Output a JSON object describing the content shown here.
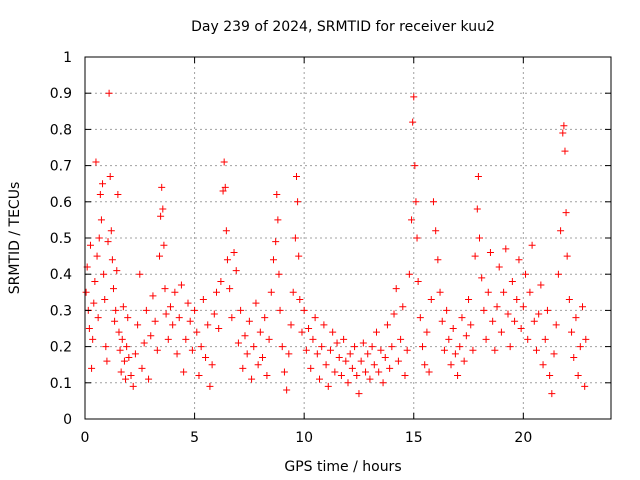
{
  "chart_data": {
    "type": "scatter",
    "title": "Day 239 of 2024, SRMTID for receiver kuu2",
    "xlabel": "GPS time / hours",
    "ylabel": "SRMTID / TECUs",
    "xlim": [
      0,
      24
    ],
    "ylim": [
      0,
      1
    ],
    "xticks": [
      0,
      5,
      10,
      15,
      20
    ],
    "xtick_labels": [
      "0",
      "5",
      "10",
      "15",
      "20"
    ],
    "yticks": [
      0,
      0.1,
      0.2,
      0.3,
      0.4,
      0.5,
      0.6,
      0.7,
      0.8,
      0.9,
      1
    ],
    "ytick_labels": [
      "0",
      "0.1",
      "0.2",
      "0.3",
      "0.4",
      "0.5",
      "0.6",
      "0.7",
      "0.8",
      "0.9",
      "1"
    ],
    "grid": true,
    "marker": "+",
    "color": "#ff0000",
    "series": [
      {
        "name": "SRMTID",
        "points": [
          [
            0.05,
            0.35
          ],
          [
            0.1,
            0.42
          ],
          [
            0.15,
            0.3
          ],
          [
            0.2,
            0.25
          ],
          [
            0.25,
            0.48
          ],
          [
            0.3,
            0.14
          ],
          [
            0.35,
            0.22
          ],
          [
            0.4,
            0.32
          ],
          [
            0.45,
            0.38
          ],
          [
            0.5,
            0.71
          ],
          [
            0.55,
            0.45
          ],
          [
            0.6,
            0.28
          ],
          [
            0.65,
            0.5
          ],
          [
            0.7,
            0.62
          ],
          [
            0.75,
            0.55
          ],
          [
            0.8,
            0.65
          ],
          [
            0.85,
            0.4
          ],
          [
            0.9,
            0.33
          ],
          [
            0.95,
            0.2
          ],
          [
            1.0,
            0.16
          ],
          [
            1.05,
            0.49
          ],
          [
            1.1,
            0.9
          ],
          [
            1.15,
            0.67
          ],
          [
            1.2,
            0.52
          ],
          [
            1.25,
            0.44
          ],
          [
            1.3,
            0.36
          ],
          [
            1.35,
            0.27
          ],
          [
            1.4,
            0.3
          ],
          [
            1.45,
            0.41
          ],
          [
            1.5,
            0.62
          ],
          [
            1.55,
            0.24
          ],
          [
            1.6,
            0.19
          ],
          [
            1.65,
            0.13
          ],
          [
            1.7,
            0.22
          ],
          [
            1.75,
            0.31
          ],
          [
            1.8,
            0.16
          ],
          [
            1.85,
            0.11
          ],
          [
            1.9,
            0.2
          ],
          [
            1.95,
            0.28
          ],
          [
            2.0,
            0.17
          ],
          [
            2.1,
            0.12
          ],
          [
            2.2,
            0.09
          ],
          [
            2.3,
            0.18
          ],
          [
            2.4,
            0.26
          ],
          [
            2.5,
            0.4
          ],
          [
            2.6,
            0.14
          ],
          [
            2.7,
            0.21
          ],
          [
            2.8,
            0.3
          ],
          [
            2.9,
            0.11
          ],
          [
            3.0,
            0.23
          ],
          [
            3.1,
            0.34
          ],
          [
            3.2,
            0.27
          ],
          [
            3.3,
            0.19
          ],
          [
            3.4,
            0.45
          ],
          [
            3.45,
            0.56
          ],
          [
            3.5,
            0.64
          ],
          [
            3.55,
            0.58
          ],
          [
            3.6,
            0.48
          ],
          [
            3.65,
            0.36
          ],
          [
            3.7,
            0.29
          ],
          [
            3.8,
            0.22
          ],
          [
            3.9,
            0.31
          ],
          [
            4.0,
            0.26
          ],
          [
            4.1,
            0.35
          ],
          [
            4.2,
            0.18
          ],
          [
            4.3,
            0.28
          ],
          [
            4.4,
            0.37
          ],
          [
            4.5,
            0.13
          ],
          [
            4.6,
            0.22
          ],
          [
            4.7,
            0.32
          ],
          [
            4.8,
            0.27
          ],
          [
            4.9,
            0.19
          ],
          [
            5.0,
            0.3
          ],
          [
            5.1,
            0.24
          ],
          [
            5.2,
            0.12
          ],
          [
            5.3,
            0.2
          ],
          [
            5.4,
            0.33
          ],
          [
            5.5,
            0.17
          ],
          [
            5.6,
            0.26
          ],
          [
            5.7,
            0.09
          ],
          [
            5.8,
            0.15
          ],
          [
            5.9,
            0.29
          ],
          [
            6.0,
            0.35
          ],
          [
            6.1,
            0.25
          ],
          [
            6.2,
            0.38
          ],
          [
            6.3,
            0.63
          ],
          [
            6.35,
            0.71
          ],
          [
            6.4,
            0.64
          ],
          [
            6.45,
            0.52
          ],
          [
            6.5,
            0.44
          ],
          [
            6.6,
            0.36
          ],
          [
            6.7,
            0.28
          ],
          [
            6.8,
            0.46
          ],
          [
            6.9,
            0.41
          ],
          [
            7.0,
            0.21
          ],
          [
            7.1,
            0.3
          ],
          [
            7.2,
            0.14
          ],
          [
            7.3,
            0.23
          ],
          [
            7.4,
            0.18
          ],
          [
            7.5,
            0.27
          ],
          [
            7.6,
            0.11
          ],
          [
            7.7,
            0.2
          ],
          [
            7.8,
            0.32
          ],
          [
            7.9,
            0.15
          ],
          [
            8.0,
            0.24
          ],
          [
            8.1,
            0.17
          ],
          [
            8.2,
            0.28
          ],
          [
            8.3,
            0.12
          ],
          [
            8.4,
            0.22
          ],
          [
            8.5,
            0.35
          ],
          [
            8.6,
            0.44
          ],
          [
            8.7,
            0.49
          ],
          [
            8.75,
            0.62
          ],
          [
            8.8,
            0.55
          ],
          [
            8.85,
            0.4
          ],
          [
            8.9,
            0.3
          ],
          [
            9.0,
            0.2
          ],
          [
            9.1,
            0.13
          ],
          [
            9.2,
            0.08
          ],
          [
            9.3,
            0.18
          ],
          [
            9.4,
            0.26
          ],
          [
            9.5,
            0.35
          ],
          [
            9.6,
            0.5
          ],
          [
            9.65,
            0.67
          ],
          [
            9.7,
            0.6
          ],
          [
            9.75,
            0.45
          ],
          [
            9.8,
            0.33
          ],
          [
            9.9,
            0.24
          ],
          [
            10.0,
            0.3
          ],
          [
            10.1,
            0.19
          ],
          [
            10.2,
            0.25
          ],
          [
            10.3,
            0.14
          ],
          [
            10.4,
            0.22
          ],
          [
            10.5,
            0.28
          ],
          [
            10.6,
            0.18
          ],
          [
            10.7,
            0.11
          ],
          [
            10.8,
            0.2
          ],
          [
            10.9,
            0.26
          ],
          [
            11.0,
            0.15
          ],
          [
            11.1,
            0.09
          ],
          [
            11.2,
            0.19
          ],
          [
            11.3,
            0.24
          ],
          [
            11.4,
            0.13
          ],
          [
            11.5,
            0.21
          ],
          [
            11.6,
            0.17
          ],
          [
            11.7,
            0.12
          ],
          [
            11.8,
            0.22
          ],
          [
            11.9,
            0.16
          ],
          [
            12.0,
            0.1
          ],
          [
            12.1,
            0.18
          ],
          [
            12.2,
            0.14
          ],
          [
            12.3,
            0.2
          ],
          [
            12.4,
            0.12
          ],
          [
            12.5,
            0.07
          ],
          [
            12.6,
            0.16
          ],
          [
            12.7,
            0.21
          ],
          [
            12.8,
            0.13
          ],
          [
            12.9,
            0.18
          ],
          [
            13.0,
            0.11
          ],
          [
            13.1,
            0.2
          ],
          [
            13.2,
            0.15
          ],
          [
            13.3,
            0.24
          ],
          [
            13.4,
            0.13
          ],
          [
            13.5,
            0.19
          ],
          [
            13.6,
            0.1
          ],
          [
            13.7,
            0.17
          ],
          [
            13.8,
            0.26
          ],
          [
            13.9,
            0.14
          ],
          [
            14.0,
            0.2
          ],
          [
            14.1,
            0.29
          ],
          [
            14.2,
            0.36
          ],
          [
            14.3,
            0.16
          ],
          [
            14.4,
            0.22
          ],
          [
            14.5,
            0.31
          ],
          [
            14.6,
            0.12
          ],
          [
            14.7,
            0.19
          ],
          [
            14.8,
            0.4
          ],
          [
            14.9,
            0.55
          ],
          [
            14.95,
            0.82
          ],
          [
            15.0,
            0.89
          ],
          [
            15.05,
            0.7
          ],
          [
            15.1,
            0.6
          ],
          [
            15.15,
            0.5
          ],
          [
            15.2,
            0.38
          ],
          [
            15.3,
            0.28
          ],
          [
            15.4,
            0.2
          ],
          [
            15.5,
            0.15
          ],
          [
            15.6,
            0.24
          ],
          [
            15.7,
            0.13
          ],
          [
            15.8,
            0.33
          ],
          [
            15.9,
            0.6
          ],
          [
            16.0,
            0.52
          ],
          [
            16.1,
            0.44
          ],
          [
            16.2,
            0.35
          ],
          [
            16.3,
            0.27
          ],
          [
            16.4,
            0.19
          ],
          [
            16.5,
            0.3
          ],
          [
            16.6,
            0.22
          ],
          [
            16.7,
            0.15
          ],
          [
            16.8,
            0.25
          ],
          [
            16.9,
            0.18
          ],
          [
            17.0,
            0.12
          ],
          [
            17.1,
            0.2
          ],
          [
            17.2,
            0.28
          ],
          [
            17.3,
            0.16
          ],
          [
            17.4,
            0.23
          ],
          [
            17.5,
            0.33
          ],
          [
            17.6,
            0.26
          ],
          [
            17.7,
            0.19
          ],
          [
            17.8,
            0.45
          ],
          [
            17.9,
            0.58
          ],
          [
            17.95,
            0.67
          ],
          [
            18.0,
            0.5
          ],
          [
            18.1,
            0.39
          ],
          [
            18.2,
            0.3
          ],
          [
            18.3,
            0.22
          ],
          [
            18.4,
            0.35
          ],
          [
            18.5,
            0.46
          ],
          [
            18.6,
            0.27
          ],
          [
            18.7,
            0.19
          ],
          [
            18.8,
            0.31
          ],
          [
            18.9,
            0.42
          ],
          [
            19.0,
            0.24
          ],
          [
            19.1,
            0.35
          ],
          [
            19.2,
            0.47
          ],
          [
            19.3,
            0.29
          ],
          [
            19.4,
            0.2
          ],
          [
            19.5,
            0.38
          ],
          [
            19.6,
            0.27
          ],
          [
            19.7,
            0.33
          ],
          [
            19.8,
            0.44
          ],
          [
            19.9,
            0.25
          ],
          [
            20.0,
            0.31
          ],
          [
            20.1,
            0.4
          ],
          [
            20.2,
            0.22
          ],
          [
            20.3,
            0.35
          ],
          [
            20.4,
            0.48
          ],
          [
            20.5,
            0.27
          ],
          [
            20.6,
            0.19
          ],
          [
            20.7,
            0.29
          ],
          [
            20.8,
            0.37
          ],
          [
            20.9,
            0.15
          ],
          [
            21.0,
            0.22
          ],
          [
            21.1,
            0.3
          ],
          [
            21.2,
            0.12
          ],
          [
            21.3,
            0.07
          ],
          [
            21.4,
            0.18
          ],
          [
            21.5,
            0.26
          ],
          [
            21.6,
            0.4
          ],
          [
            21.7,
            0.52
          ],
          [
            21.8,
            0.79
          ],
          [
            21.85,
            0.81
          ],
          [
            21.9,
            0.74
          ],
          [
            21.95,
            0.57
          ],
          [
            22.0,
            0.45
          ],
          [
            22.1,
            0.33
          ],
          [
            22.2,
            0.24
          ],
          [
            22.3,
            0.17
          ],
          [
            22.4,
            0.28
          ],
          [
            22.5,
            0.12
          ],
          [
            22.6,
            0.2
          ],
          [
            22.7,
            0.31
          ],
          [
            22.8,
            0.09
          ],
          [
            22.85,
            0.22
          ]
        ]
      }
    ]
  }
}
